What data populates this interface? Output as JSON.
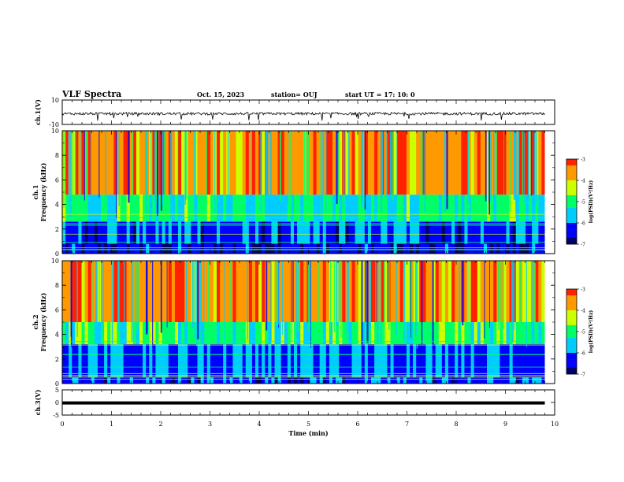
{
  "header": {
    "title": "VLF Spectra",
    "date": "Oct. 15, 2023",
    "station": "station= OUJ",
    "start": "start  UT =   17: 10: 0"
  },
  "colors": {
    "colormap": [
      "#000066",
      "#0000ff",
      "#00ccff",
      "#00ff66",
      "#ccff00",
      "#ff9900",
      "#ff2200"
    ],
    "trace": "#000000",
    "frame": "#000000"
  },
  "chart_data": [
    {
      "type": "line",
      "panel": "ch1-waveform",
      "ylabel": "ch.1(V)",
      "ylim": [
        -10,
        10
      ],
      "ytick_labels": [
        "10",
        "-10"
      ],
      "xlim": [
        0,
        10
      ],
      "series": [
        {
          "values_range": [
            -3,
            3
          ],
          "x_end": 9.8
        }
      ]
    },
    {
      "type": "heatmap",
      "panel": "ch1-spectrogram",
      "ylabel": "ch.1",
      "ylabel2": "Frequency  (kHz)",
      "ylim": [
        0,
        10
      ],
      "ytick_labels": [
        "0",
        "2",
        "4",
        "6",
        "8",
        "10"
      ],
      "xlim": [
        0,
        9.8
      ],
      "colorbar": {
        "label": "log(PSD)(V²/Hz)",
        "range": [
          -7,
          -3
        ],
        "tick_labels": [
          "-3",
          "-4",
          "-5",
          "-6",
          "-7"
        ]
      },
      "bands_khz": [
        [
          0,
          0.8,
          -6.5
        ],
        [
          0.8,
          2.6,
          -6.2
        ],
        [
          2.6,
          4.8,
          -5.2
        ],
        [
          4.8,
          10,
          -3.6
        ]
      ]
    },
    {
      "type": "heatmap",
      "panel": "ch2-spectrogram",
      "ylabel": "ch.2",
      "ylabel2": "Frequency  (kHz)",
      "ylim": [
        0,
        10
      ],
      "ytick_labels": [
        "0",
        "2",
        "4",
        "6",
        "8",
        "10"
      ],
      "xlim": [
        0,
        9.8
      ],
      "colorbar": {
        "label": "log(PSD)(V²/Hz)",
        "range": [
          -7,
          -3
        ],
        "tick_labels": [
          "-3",
          "-4",
          "-5",
          "-6",
          "-7"
        ]
      },
      "bands_khz": [
        [
          0,
          0.5,
          -6.2
        ],
        [
          0.5,
          3.2,
          -6.0
        ],
        [
          3.2,
          5.0,
          -5.0
        ],
        [
          5.0,
          10,
          -3.6
        ]
      ]
    },
    {
      "type": "line",
      "panel": "ch3-waveform",
      "ylabel": "ch.3(V)",
      "ylim": [
        -5,
        5
      ],
      "ytick_labels": [
        "5",
        "0",
        "-5"
      ],
      "xlim": [
        0,
        10
      ],
      "series": [
        {
          "values": [
            -0.2,
            -0.2
          ],
          "x": [
            0,
            9.8
          ]
        }
      ]
    }
  ],
  "xaxis": {
    "label": "Time  (min)",
    "tick_labels": [
      "0",
      "1",
      "2",
      "3",
      "4",
      "5",
      "6",
      "7",
      "8",
      "9",
      "10"
    ]
  }
}
